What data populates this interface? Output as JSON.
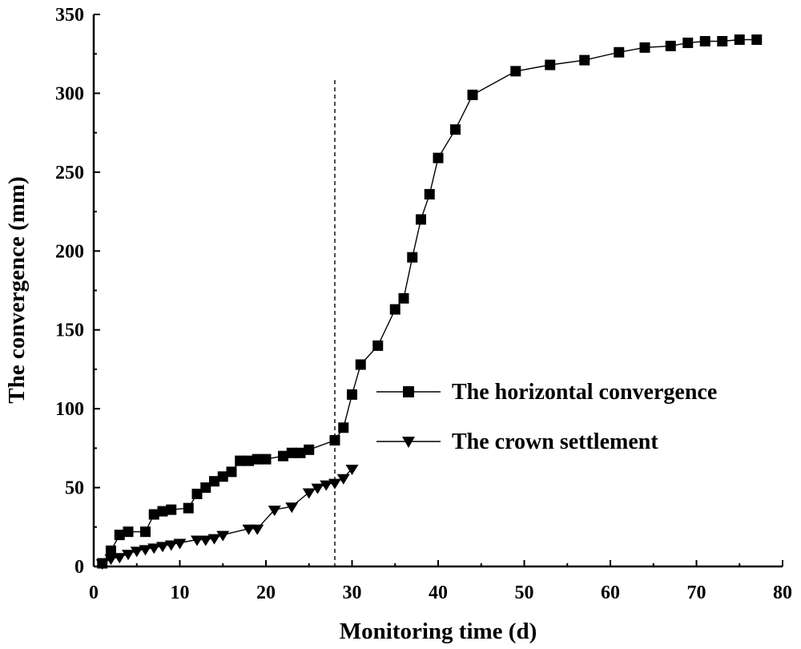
{
  "chart_data": {
    "type": "line",
    "title": "",
    "xlabel": "Monitoring time (d)",
    "ylabel": "The convergence (mm)",
    "xlim": [
      0,
      80
    ],
    "ylim": [
      0,
      350
    ],
    "xticks": [
      "0",
      "10",
      "20",
      "30",
      "40",
      "50",
      "60",
      "70",
      "80"
    ],
    "yticks": [
      "0",
      "50",
      "100",
      "150",
      "200",
      "250",
      "300",
      "350"
    ],
    "grid": false,
    "legend_position": "center-right",
    "reference_line_x": 28,
    "series": [
      {
        "name": "The horizontal convergence",
        "marker": "square",
        "x": [
          1,
          2,
          3,
          4,
          6,
          7,
          8,
          9,
          11,
          12,
          13,
          14,
          15,
          16,
          17,
          18,
          19,
          20,
          22,
          23,
          24,
          25,
          28,
          29,
          30,
          31,
          33,
          35,
          36,
          37,
          38,
          39,
          40,
          42,
          44,
          49,
          53,
          57,
          61,
          64,
          67,
          69,
          71,
          73,
          75,
          77
        ],
        "y": [
          2,
          10,
          20,
          22,
          22,
          33,
          35,
          36,
          37,
          46,
          50,
          54,
          57,
          60,
          67,
          67,
          68,
          68,
          70,
          72,
          72,
          74,
          80,
          88,
          109,
          128,
          140,
          163,
          170,
          196,
          220,
          236,
          259,
          277,
          299,
          314,
          318,
          321,
          326,
          329,
          330,
          332,
          333,
          333,
          334,
          334
        ]
      },
      {
        "name": "The crown settlement",
        "marker": "triangle-down",
        "x": [
          1,
          2,
          3,
          4,
          5,
          6,
          7,
          8,
          9,
          10,
          12,
          13,
          14,
          15,
          18,
          19,
          21,
          23,
          25,
          26,
          27,
          28,
          29,
          30
        ],
        "y": [
          2,
          5,
          6,
          8,
          10,
          11,
          12,
          13,
          14,
          15,
          17,
          17,
          18,
          20,
          24,
          24,
          36,
          38,
          47,
          50,
          52,
          53,
          56,
          62
        ]
      }
    ]
  }
}
